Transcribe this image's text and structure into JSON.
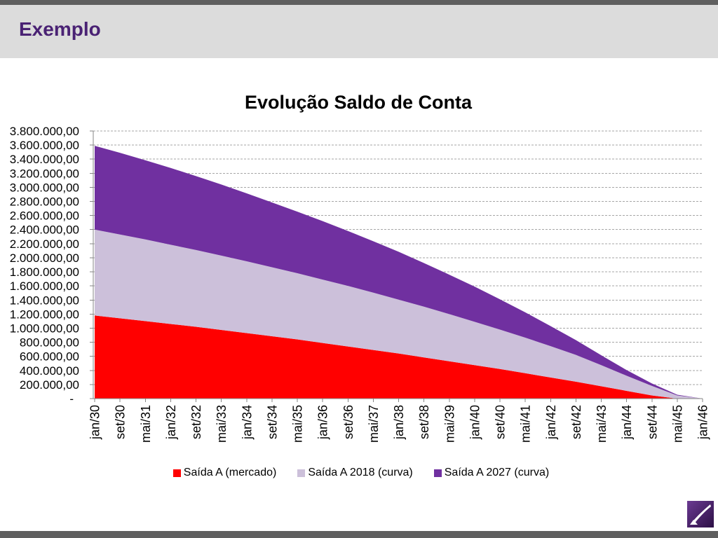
{
  "header": {
    "title": "Exemplo"
  },
  "colors": {
    "header_text": "#4A2274",
    "header_band": "#DCDCDC",
    "border_bar": "#5F5F5F"
  },
  "chart_data": {
    "type": "area",
    "stacked": true,
    "title": "Evolução Saldo de Conta",
    "categories": [
      "jan/30",
      "set/30",
      "mai/31",
      "jan/32",
      "set/32",
      "mai/33",
      "jan/34",
      "set/34",
      "mai/35",
      "jan/36",
      "set/36",
      "mai/37",
      "jan/38",
      "set/38",
      "mai/39",
      "jan/40",
      "set/40",
      "mai/41",
      "jan/42",
      "set/42",
      "mai/43",
      "jan/44",
      "set/44",
      "mai/45",
      "jan/46"
    ],
    "ylim": [
      0,
      3800000
    ],
    "y_ticks": [
      {
        "value": 0,
        "label": "-"
      },
      {
        "value": 200000,
        "label": "200.000,00"
      },
      {
        "value": 400000,
        "label": "400.000,00"
      },
      {
        "value": 600000,
        "label": "600.000,00"
      },
      {
        "value": 800000,
        "label": "800.000,00"
      },
      {
        "value": 1000000,
        "label": "1.000.000,00"
      },
      {
        "value": 1200000,
        "label": "1.200.000,00"
      },
      {
        "value": 1400000,
        "label": "1.400.000,00"
      },
      {
        "value": 1600000,
        "label": "1.600.000,00"
      },
      {
        "value": 1800000,
        "label": "1.800.000,00"
      },
      {
        "value": 2000000,
        "label": "2.000.000,00"
      },
      {
        "value": 2200000,
        "label": "2.200.000,00"
      },
      {
        "value": 2400000,
        "label": "2.400.000,00"
      },
      {
        "value": 2600000,
        "label": "2.600.000,00"
      },
      {
        "value": 2800000,
        "label": "2.800.000,00"
      },
      {
        "value": 3000000,
        "label": "3.000.000,00"
      },
      {
        "value": 3200000,
        "label": "3.200.000,00"
      },
      {
        "value": 3400000,
        "label": "3.400.000,00"
      },
      {
        "value": 3600000,
        "label": "3.600.000,00"
      },
      {
        "value": 3800000,
        "label": "3.800.000,00"
      }
    ],
    "grid": true,
    "legend_position": "bottom",
    "series": [
      {
        "name": "Saída A (mercado)",
        "color": "#FF0000",
        "values": [
          1180000,
          1140000,
          1100000,
          1060000,
          1020000,
          975000,
          930000,
          885000,
          840000,
          790000,
          740000,
          690000,
          640000,
          585000,
          530000,
          475000,
          420000,
          360000,
          300000,
          240000,
          175000,
          110000,
          45000,
          0,
          0
        ]
      },
      {
        "name": "Saída A 2018 (curva)",
        "color": "#CCC0DA",
        "values": [
          1220000,
          1190000,
          1160000,
          1125000,
          1090000,
          1055000,
          1020000,
          980000,
          940000,
          900000,
          860000,
          815000,
          765000,
          720000,
          670000,
          615000,
          560000,
          505000,
          445000,
          380000,
          300000,
          215000,
          135000,
          45000,
          0
        ]
      },
      {
        "name": "Saída A 2027 (curva)",
        "color": "#7030A0",
        "values": [
          1190000,
          1160000,
          1125000,
          1090000,
          1050000,
          1010000,
          965000,
          920000,
          875000,
          830000,
          780000,
          730000,
          680000,
          620000,
          560000,
          500000,
          430000,
          360000,
          285000,
          210000,
          140000,
          80000,
          35000,
          10000,
          0
        ]
      }
    ]
  }
}
